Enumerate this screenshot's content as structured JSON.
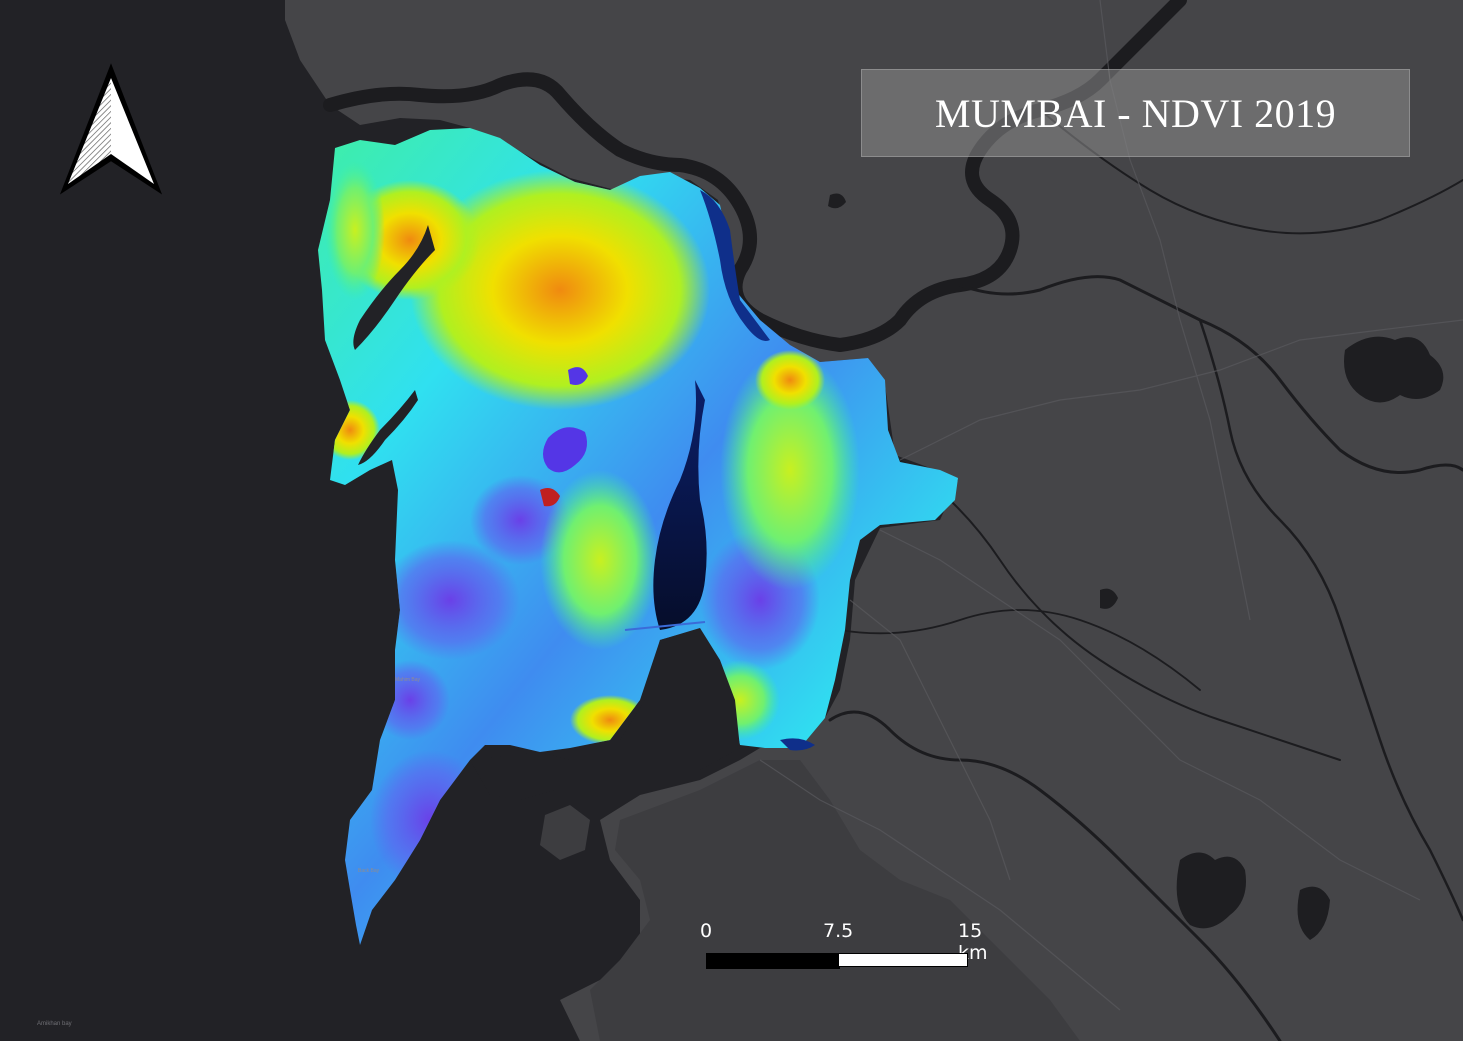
{
  "title": "MUMBAI - NDVI 2019",
  "scale_bar": {
    "labels": [
      "0",
      "7.5",
      "15 km"
    ]
  },
  "north_arrow": {
    "icon": "north-arrow-icon"
  },
  "map_labels": {
    "mahim_bay": "Mahim Bay",
    "back_bay": "Back Bay"
  },
  "attribution": "Amikhan bay",
  "colors": {
    "sea": "#222226",
    "land": "#454548",
    "rivers": "#1b1b1e",
    "ndvi_ramp": [
      "#5a34e0",
      "#3f8cf0",
      "#30e0f0",
      "#40f0a0",
      "#b0f020",
      "#f0f000",
      "#f0a010",
      "#e04010"
    ]
  }
}
